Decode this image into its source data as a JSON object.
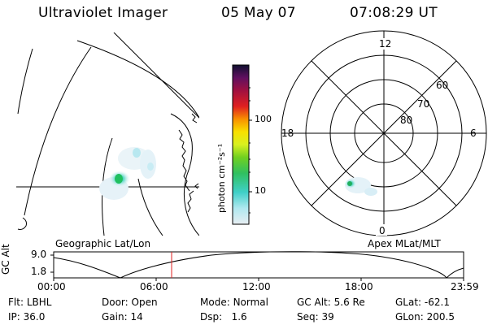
{
  "header": {
    "instrument": "Ultraviolet Imager",
    "date": "05 May 07",
    "time": "07:08:29 UT"
  },
  "colorbar": {
    "unit_label": "photon cm⁻²s⁻¹",
    "ticks": [
      "100",
      "10"
    ]
  },
  "polar_plot": {
    "clock_labels": [
      "12",
      "18",
      "6",
      "0"
    ],
    "lat_labels": [
      "60",
      "70",
      "80"
    ]
  },
  "captions": {
    "left": "Geographic Lat/Lon",
    "right": "Apex MLat/MLT"
  },
  "timeline": {
    "ylabel": "GC Alt",
    "yticks": [
      "9.0",
      "1.8"
    ],
    "xticks": [
      "00:00",
      "06:00",
      "12:00",
      "18:00",
      "23:59"
    ]
  },
  "info_rows": [
    [
      {
        "label": "Flt:",
        "value": "LBHL"
      },
      {
        "label": "Door:",
        "value": "Open"
      },
      {
        "label": "Mode:",
        "value": "Normal"
      },
      {
        "label": "GC Alt:",
        "value": "5.6 Re"
      },
      {
        "label": "GLat:",
        "value": "-62.1"
      }
    ],
    [
      {
        "label": "IP:",
        "value": "36.0"
      },
      {
        "label": "Gain:",
        "value": "14"
      },
      {
        "label": "Dsp:",
        "value": "1.6"
      },
      {
        "label": "Seq:",
        "value": "39"
      },
      {
        "label": "GLon:",
        "value": "200.5"
      }
    ]
  ],
  "colors": {
    "foreground": "#000000",
    "background": "#ffffff",
    "current_time_marker": "#e02020"
  }
}
